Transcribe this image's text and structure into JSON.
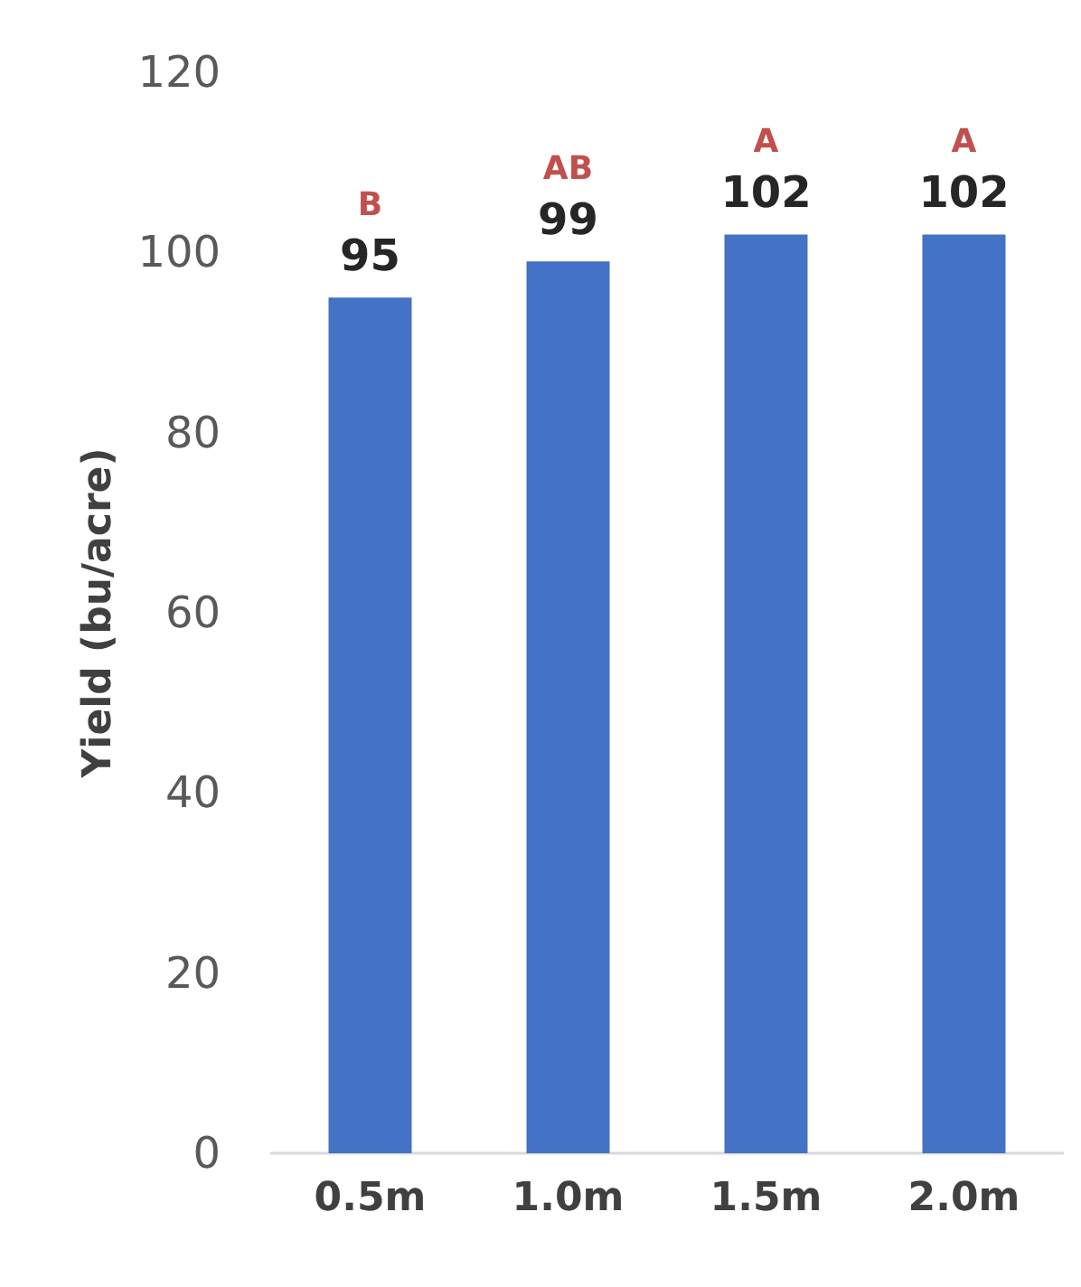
{
  "chart_data": {
    "type": "bar",
    "ylabel": "Yield (bu/acre)",
    "categories": [
      "0.5m",
      "1.0m",
      "1.5m",
      "2.0m"
    ],
    "values": [
      95,
      99,
      102,
      102
    ],
    "color": "#4472c4",
    "ylim": [
      0,
      120
    ],
    "yticks": [
      0,
      20,
      40,
      60,
      80,
      100,
      120
    ],
    "grid": false,
    "data_labels": true,
    "annotations": [
      "B",
      "AB",
      "A",
      "A"
    ]
  }
}
